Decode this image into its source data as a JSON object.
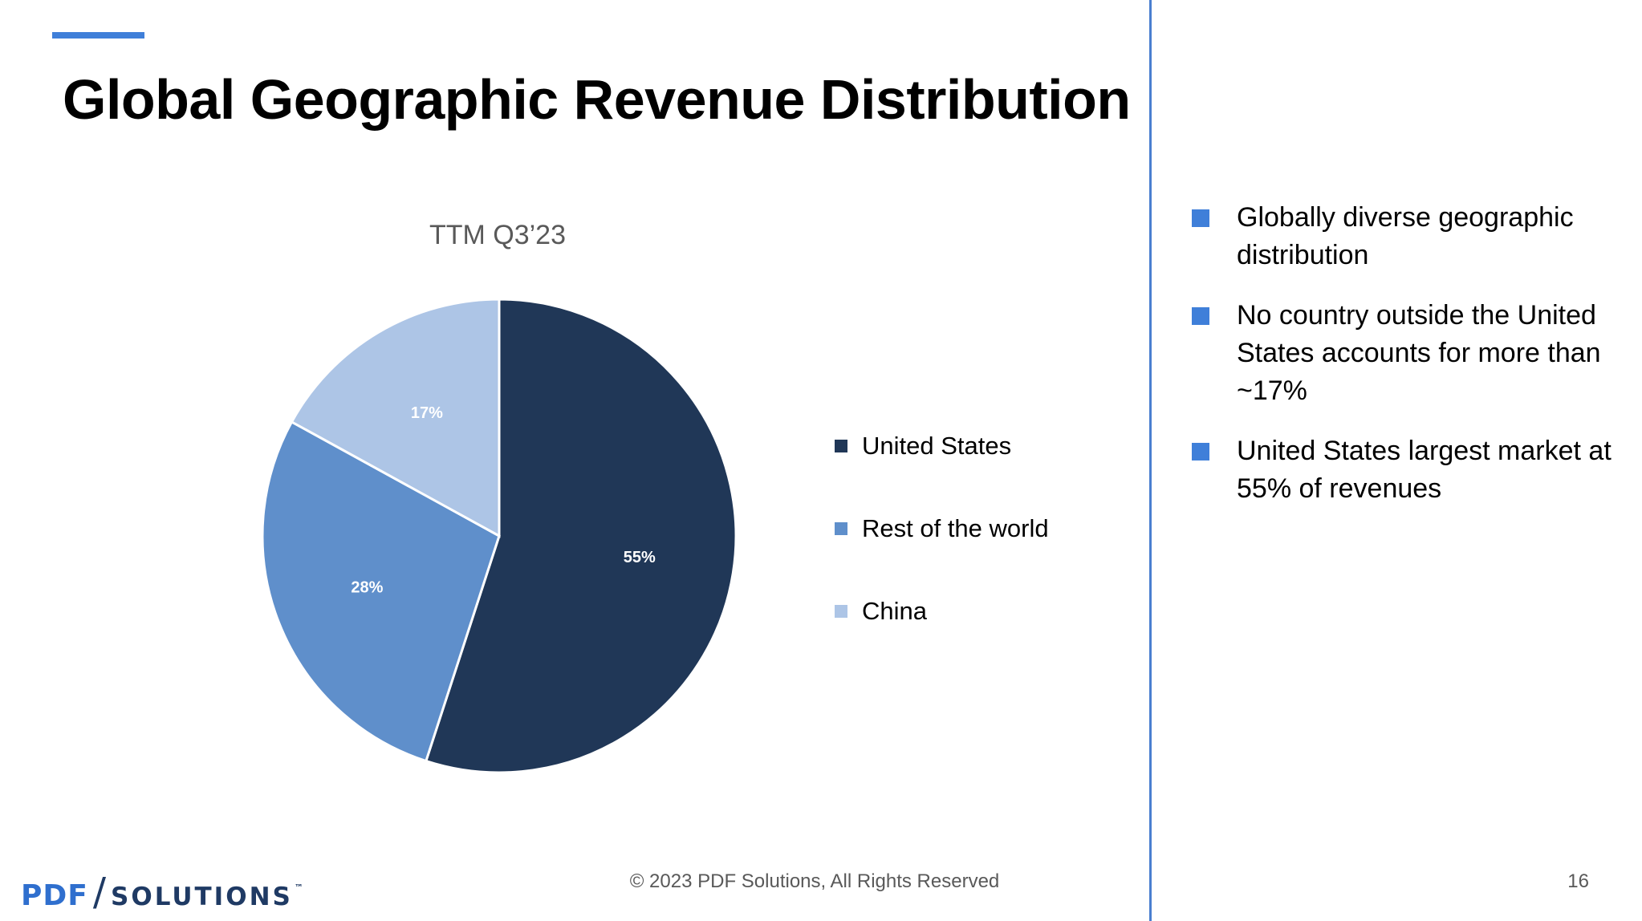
{
  "slide": {
    "title": "Global Geographic Revenue Distribution",
    "bullets": [
      "Globally diverse geographic distribution",
      "No country outside the United States accounts for more than ~17%",
      "United States largest market at 55% of revenues"
    ],
    "footer": {
      "logo_primary": "PDF",
      "logo_slash": "/",
      "logo_secondary": "SOLUTIONS",
      "logo_tm": "™",
      "copyright": "© 2023 PDF Solutions, All Rights Reserved",
      "page_number": "16"
    },
    "colors": {
      "accent": "#3f7fd9",
      "united_states": "#203757",
      "rest_of_world": "#5f8fcb",
      "china": "#adc5e6"
    }
  },
  "chart_data": {
    "type": "pie",
    "title": "TTM Q3’23",
    "slices": [
      {
        "label": "United States",
        "value": 55,
        "value_label": "55%",
        "color": "#203757"
      },
      {
        "label": "Rest of the world",
        "value": 28,
        "value_label": "28%",
        "color": "#5f8fcb"
      },
      {
        "label": "China",
        "value": 17,
        "value_label": "17%",
        "color": "#adc5e6"
      }
    ],
    "legend_position": "right"
  }
}
